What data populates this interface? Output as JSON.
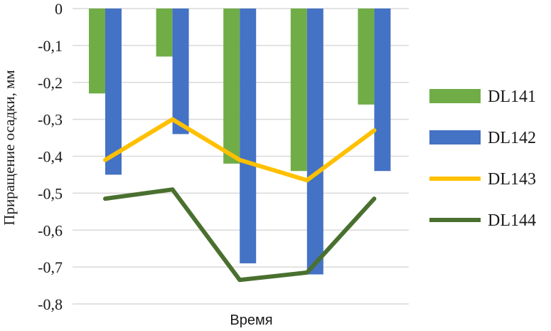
{
  "chart_data": {
    "type": "bar",
    "ylabel": "Приращение осадки, мм",
    "xlabel": "Время",
    "ylim": [
      -0.8,
      0
    ],
    "yticks": [
      0,
      -0.1,
      -0.2,
      -0.3,
      -0.4,
      -0.5,
      -0.6,
      -0.7,
      -0.8
    ],
    "ytick_labels": [
      "0",
      "-0,1",
      "-0,2",
      "-0,3",
      "-0,4",
      "-0,5",
      "-0,6",
      "-0,7",
      "-0,8"
    ],
    "grid": true,
    "legend_position": "right",
    "series": [
      {
        "name": "DL141",
        "type": "bar",
        "color": "#70ad47",
        "values": [
          -0.23,
          -0.13,
          -0.42,
          -0.44,
          -0.26
        ]
      },
      {
        "name": "DL142",
        "type": "bar",
        "color": "#4472c4",
        "values": [
          -0.45,
          -0.34,
          -0.69,
          -0.72,
          -0.44
        ]
      },
      {
        "name": "DL143",
        "type": "line",
        "color": "#ffc000",
        "values": [
          -0.41,
          -0.3,
          -0.41,
          -0.465,
          -0.33
        ]
      },
      {
        "name": "DL144",
        "type": "line",
        "color": "#4a7030",
        "values": [
          -0.515,
          -0.49,
          -0.735,
          -0.715,
          -0.515
        ]
      }
    ]
  }
}
